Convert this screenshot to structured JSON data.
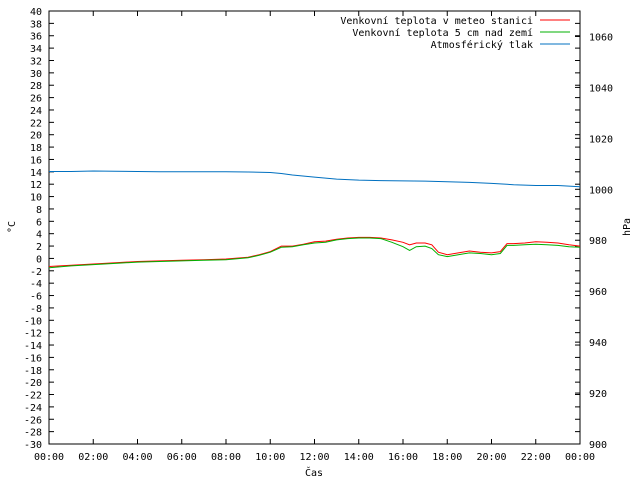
{
  "chart_data": {
    "type": "line",
    "xlabel": "Čas",
    "ylabel": "°C",
    "y2label": "hPa",
    "ylim": [
      -30,
      40
    ],
    "y2lim": [
      900,
      1070
    ],
    "x_ticks": [
      "00:00",
      "02:00",
      "04:00",
      "06:00",
      "08:00",
      "10:00",
      "12:00",
      "14:00",
      "16:00",
      "18:00",
      "20:00",
      "22:00",
      "00:00"
    ],
    "x_hours_range": [
      0,
      24
    ],
    "grid": false,
    "legend_position": "top-right",
    "series": [
      {
        "name": "Venkovní teplota v meteo stanici",
        "color": "#ff0000",
        "axis": "y",
        "x": [
          0,
          1,
          2,
          3,
          4,
          5,
          6,
          7,
          8,
          9,
          9.5,
          10,
          10.5,
          11,
          11.5,
          12,
          12.5,
          13,
          13.5,
          14,
          14.5,
          15,
          15.5,
          16,
          16.3,
          16.6,
          17,
          17.3,
          17.6,
          18,
          18.5,
          19,
          19.5,
          20,
          20.4,
          20.7,
          21,
          21.5,
          22,
          22.5,
          23,
          23.5,
          24
        ],
        "y": [
          -1.3,
          -1.1,
          -0.9,
          -0.7,
          -0.5,
          -0.4,
          -0.3,
          -0.2,
          -0.1,
          0.2,
          0.6,
          1.1,
          2.0,
          2.0,
          2.3,
          2.7,
          2.8,
          3.1,
          3.3,
          3.4,
          3.4,
          3.3,
          3.0,
          2.6,
          2.2,
          2.5,
          2.5,
          2.2,
          1.0,
          0.6,
          0.9,
          1.2,
          1.0,
          0.9,
          1.1,
          2.4,
          2.4,
          2.5,
          2.7,
          2.6,
          2.5,
          2.2,
          2.0
        ]
      },
      {
        "name": "Venkovní teplota 5 cm nad zemí",
        "color": "#00b000",
        "axis": "y",
        "x": [
          0,
          1,
          2,
          3,
          4,
          5,
          6,
          7,
          8,
          9,
          9.5,
          10,
          10.5,
          11,
          11.5,
          12,
          12.5,
          13,
          13.5,
          14,
          14.5,
          15,
          15.5,
          16,
          16.3,
          16.6,
          17,
          17.3,
          17.6,
          18,
          18.5,
          19,
          19.5,
          20,
          20.4,
          20.7,
          21,
          21.5,
          22,
          22.5,
          23,
          23.5,
          24
        ],
        "y": [
          -1.5,
          -1.2,
          -1.0,
          -0.8,
          -0.6,
          -0.5,
          -0.4,
          -0.3,
          -0.2,
          0.1,
          0.5,
          1.0,
          1.8,
          1.9,
          2.2,
          2.5,
          2.6,
          3.0,
          3.2,
          3.3,
          3.3,
          3.2,
          2.6,
          1.9,
          1.3,
          1.9,
          2.0,
          1.6,
          0.6,
          0.3,
          0.6,
          0.9,
          0.8,
          0.6,
          0.8,
          2.1,
          2.1,
          2.2,
          2.3,
          2.2,
          2.1,
          1.9,
          1.8
        ]
      },
      {
        "name": "Atmosférický tlak",
        "color": "#0070c0",
        "axis": "y2",
        "x": [
          0,
          1,
          2,
          3,
          4,
          5,
          6,
          7,
          8,
          9,
          10,
          10.5,
          11,
          12,
          13,
          14,
          15,
          16,
          17,
          18,
          19,
          20,
          21,
          22,
          23,
          24
        ],
        "y": [
          1007.0,
          1007.0,
          1007.2,
          1007.1,
          1007.0,
          1006.9,
          1006.9,
          1006.9,
          1006.9,
          1006.8,
          1006.6,
          1006.2,
          1005.6,
          1004.8,
          1004.0,
          1003.6,
          1003.4,
          1003.3,
          1003.2,
          1003.0,
          1002.7,
          1002.3,
          1001.8,
          1001.5,
          1001.5,
          1001.0
        ]
      }
    ]
  }
}
